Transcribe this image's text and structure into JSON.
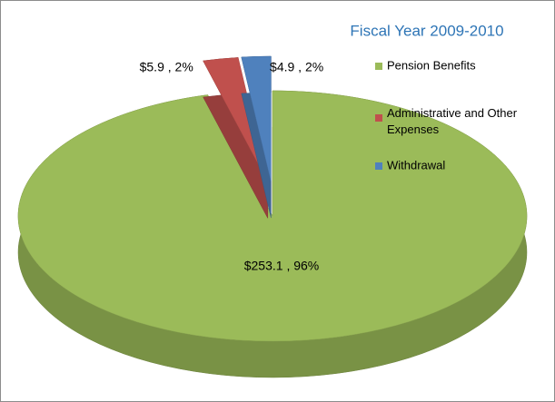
{
  "chart_data": {
    "type": "pie3d",
    "title": "Fiscal Year 2009-2010",
    "categories": [
      "Pension Benefits",
      "Administrative and Other Expenses",
      "Withdrawal"
    ],
    "values": [
      253.1,
      5.9,
      4.9
    ],
    "value_labels": [
      "$253.1 , 96%",
      "$5.9 , 2%",
      "$4.9 , 2%"
    ],
    "colors": [
      "#9bbb59",
      "#c0504d",
      "#4f81bd"
    ],
    "legend": "right"
  }
}
